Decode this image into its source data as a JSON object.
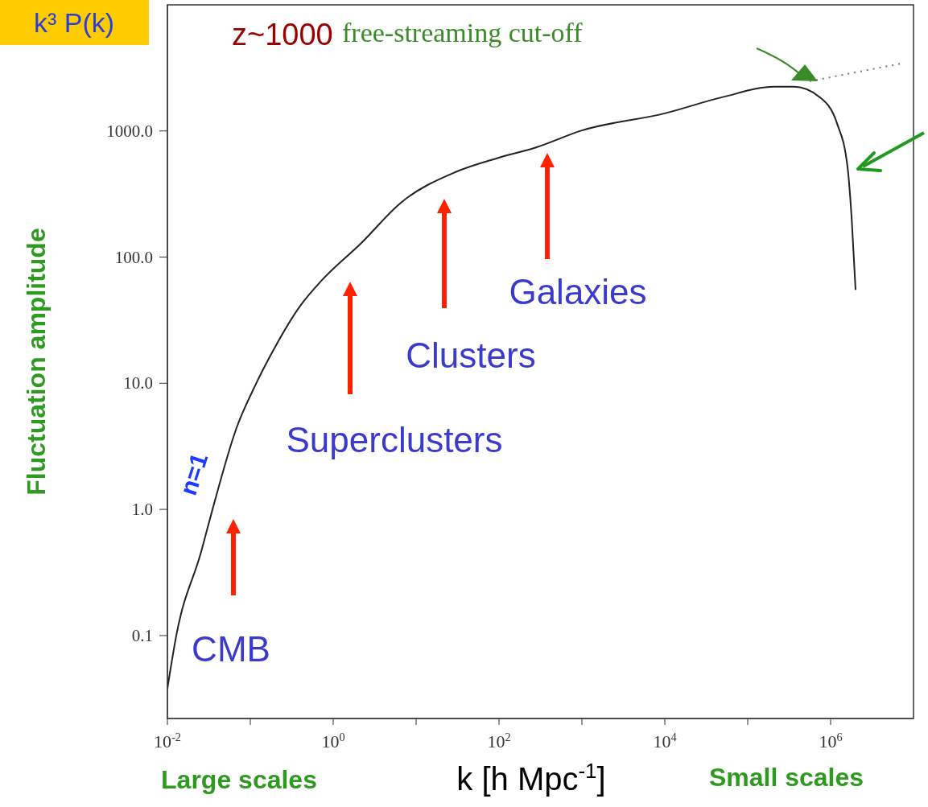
{
  "chart_data": {
    "type": "line",
    "xlabel": "k [h Mpc$^{-1}$]",
    "ylabel": "Fluctuation amplitude",
    "log": "xy",
    "xlim": [
      0.01,
      10000000
    ],
    "ylim": [
      0.022,
      10000
    ],
    "xticks": [
      {
        "value": 0.01,
        "label": "10$^{-2}$"
      },
      {
        "value": 0.1,
        "label": null
      },
      {
        "value": 1,
        "label": "10$^{0}$"
      },
      {
        "value": 10,
        "label": null
      },
      {
        "value": 100,
        "label": "10$^{2}$"
      },
      {
        "value": 1000,
        "label": null
      },
      {
        "value": 10000,
        "label": "10$^{4}$"
      },
      {
        "value": 100000,
        "label": null
      },
      {
        "value": 1000000,
        "label": "10$^{6}$"
      }
    ],
    "yticks": [
      {
        "value": 0.1,
        "label": "0.1"
      },
      {
        "value": 1,
        "label": "1.0"
      },
      {
        "value": 10,
        "label": "10.0"
      },
      {
        "value": 100,
        "label": "100.0"
      },
      {
        "value": 1000,
        "label": "1000.0"
      }
    ],
    "series": [
      {
        "color": "#222222",
        "x": [
          0.01,
          0.0128,
          0.0255,
          0.035,
          0.068,
          0.118,
          0.17,
          0.41,
          0.72,
          2.2,
          6.6,
          30,
          96,
          270,
          1000,
          10000,
          49000,
          210000,
          360000,
          740000,
          1200000,
          1600000,
          1800000,
          2000000
        ],
        "values": [
          0.038,
          0.1,
          0.46,
          1.0,
          4.4,
          10,
          16,
          42,
          65,
          130,
          271,
          473,
          610,
          735,
          1010,
          1380,
          1850,
          2240,
          2240,
          1850,
          1140,
          517,
          196,
          55
        ]
      },
      {
        "color": "#777777",
        "line_style": "dotted",
        "x": [
          560000,
          7200000
        ],
        "values": [
          2480,
          3430
        ]
      }
    ],
    "annotations": [
      "k³ P(k)",
      "z~1000",
      "n=1",
      "Large scales",
      "Small scales",
      "free-streaming cut-off",
      "CMB",
      "Superclusters",
      "Clusters",
      "Galaxies"
    ]
  }
}
